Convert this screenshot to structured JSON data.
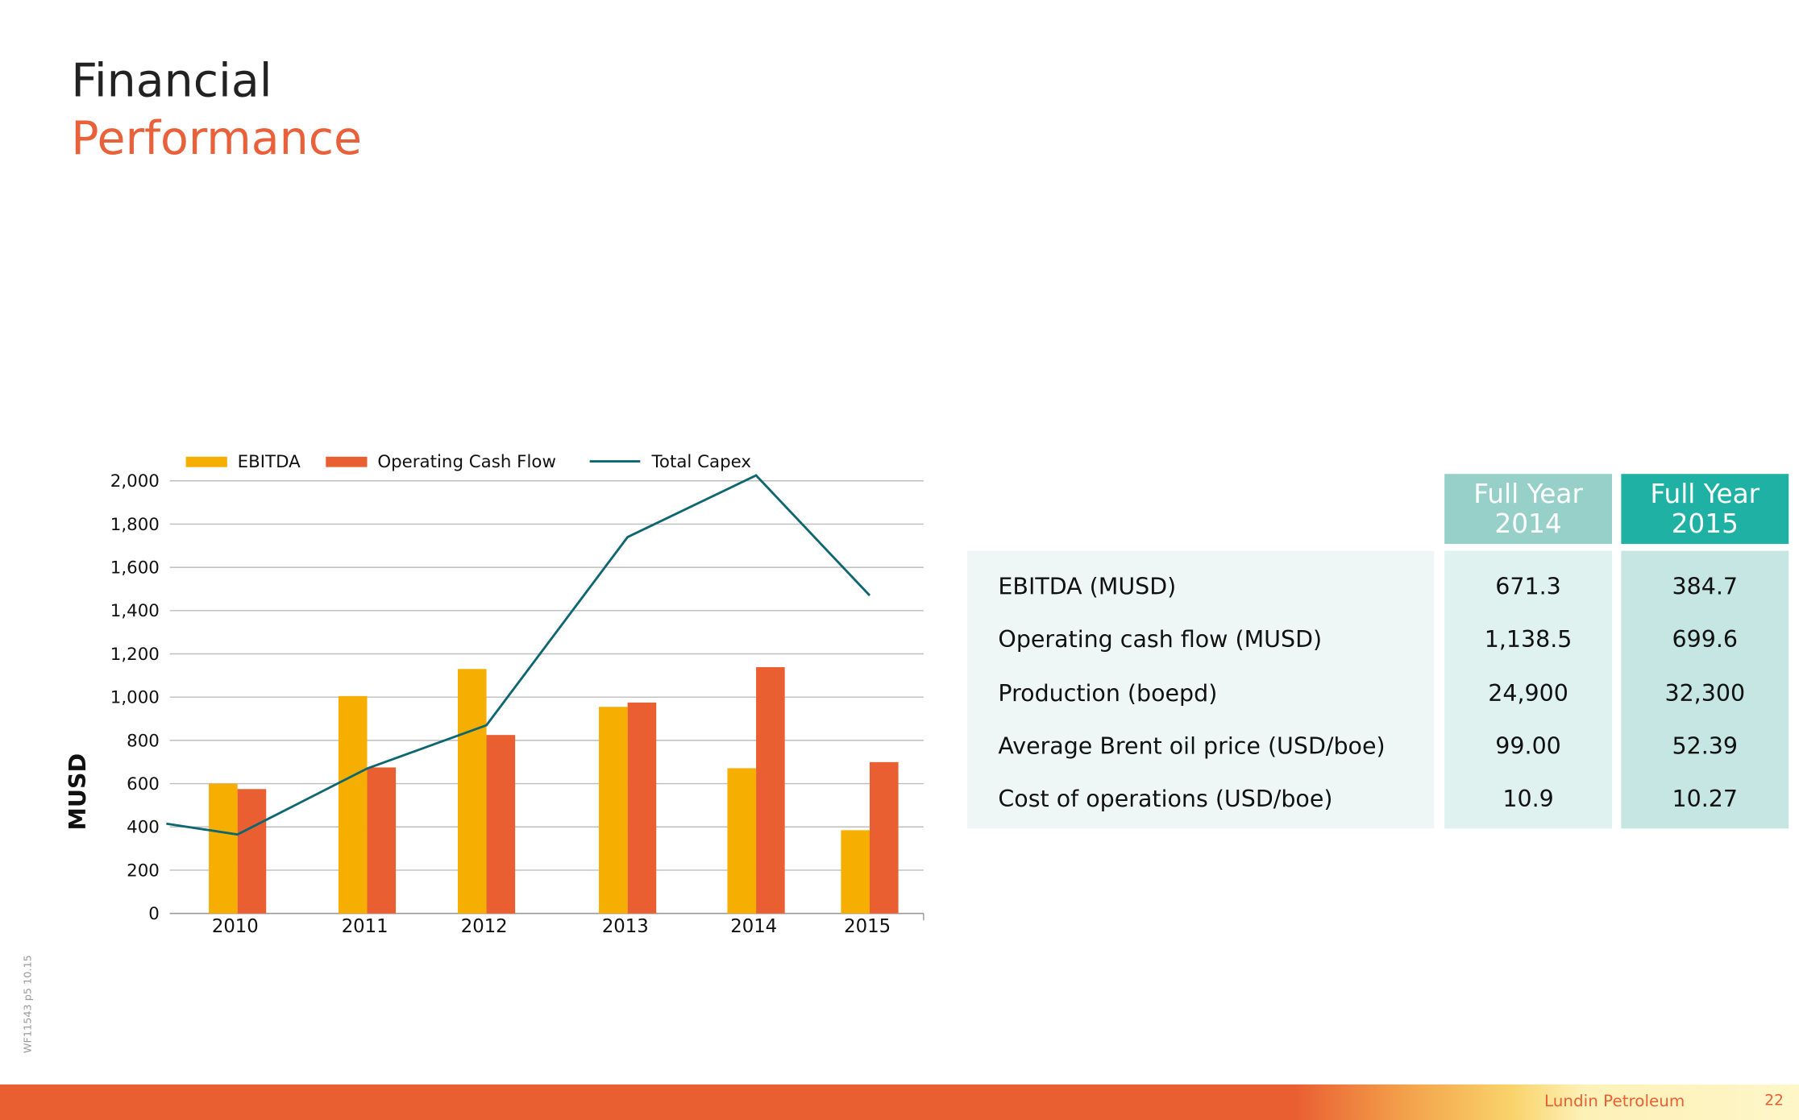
{
  "title": {
    "line1": "Financial",
    "line2": "Performance"
  },
  "chart_data": {
    "type": "bar",
    "y_label": "MUSD",
    "categories": [
      null,
      "2010",
      "2011",
      "2012",
      "2013",
      "2014",
      "2015"
    ],
    "series": [
      {
        "name": "EBITDA",
        "type": "bar",
        "color": "#f6ae00",
        "values": [
          null,
          600,
          1005,
          1130,
          955,
          671.3,
          384.7
        ]
      },
      {
        "name": "Operating Cash Flow",
        "type": "bar",
        "color": "#e95f32",
        "values": [
          null,
          575,
          675,
          825,
          975,
          1138.5,
          699.6
        ]
      },
      {
        "name": "Total Capex",
        "type": "line",
        "color": "#0e6670",
        "values": [
          415,
          365,
          670,
          870,
          1740,
          2025,
          1470
        ]
      }
    ],
    "ylim": [
      0,
      2000
    ],
    "yticks": [
      0,
      200,
      400,
      600,
      800,
      {
        "value": 1000,
        "label": "1,000"
      },
      {
        "value": 1200,
        "label": "1,200"
      },
      {
        "value": 1400,
        "label": "1,400"
      },
      {
        "value": 1600,
        "label": "1,600"
      },
      {
        "value": 1800,
        "label": "1,800"
      },
      {
        "value": 2000,
        "label": "2,000"
      }
    ],
    "grid": true
  },
  "table": {
    "header": [
      "Full Year 2014",
      "Full Year 2015"
    ],
    "rows": [
      [
        "EBITDA (MUSD)",
        "671.3",
        "384.7"
      ],
      [
        "Operating cash flow (MUSD)",
        "1,138.5",
        "699.6"
      ],
      [
        "Production (boepd)",
        "24,900",
        "32,300"
      ],
      [
        "Average Brent oil price (USD/boe)",
        "99.00",
        "52.39"
      ],
      [
        "Cost of operations (USD/boe)",
        "10.9",
        "10.27"
      ]
    ]
  },
  "side_note": "WF11543  p5  10.15",
  "footer": {
    "company": "Lundin Petroleum",
    "page": "22"
  }
}
